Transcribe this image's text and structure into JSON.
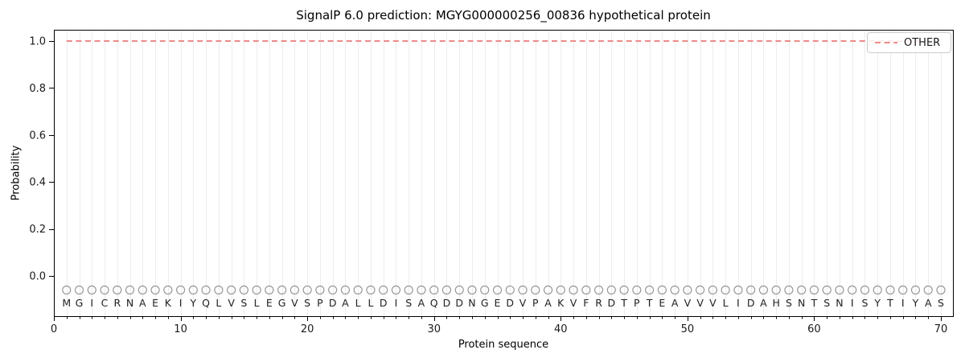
{
  "chart_data": {
    "type": "line",
    "title": "SignalP 6.0 prediction: MGYG000000256_00836 hypothetical protein",
    "xlabel": "Protein sequence",
    "ylabel": "Probability",
    "x_ticks": [
      0,
      10,
      20,
      30,
      40,
      50,
      60,
      70
    ],
    "y_ticks": [
      "0.0",
      "0.2",
      "0.4",
      "0.6",
      "0.8",
      "1.0"
    ],
    "xlim": [
      0,
      71
    ],
    "ylim": [
      -0.17,
      1.05
    ],
    "grid": {
      "vertical_line_per_residue": true,
      "horizontal": false
    },
    "legend": {
      "position": "upper-right",
      "entries": [
        {
          "label": "OTHER",
          "color": "#ee8a8a",
          "linestyle": "dashed"
        }
      ]
    },
    "series": [
      {
        "name": "OTHER",
        "color": "#ee8a8a",
        "linestyle": "dashed",
        "x_range": [
          1,
          70
        ],
        "constant_probability": 1.0
      }
    ],
    "sequence": [
      "M",
      "G",
      "I",
      "C",
      "R",
      "N",
      "A",
      "E",
      "K",
      "I",
      "Y",
      "Q",
      "L",
      "V",
      "S",
      "L",
      "E",
      "G",
      "V",
      "S",
      "P",
      "D",
      "A",
      "L",
      "L",
      "D",
      "I",
      "S",
      "A",
      "Q",
      "D",
      "D",
      "N",
      "G",
      "E",
      "D",
      "V",
      "P",
      "A",
      "K",
      "V",
      "F",
      "R",
      "D",
      "T",
      "P",
      "T",
      "E",
      "A",
      "V",
      "V",
      "V",
      "L",
      "I",
      "D",
      "A",
      "H",
      "S",
      "N",
      "T",
      "S",
      "N",
      "I",
      "S",
      "Y",
      "T",
      "I",
      "Y",
      "A",
      "S"
    ],
    "residue_markers": {
      "shape": "circle",
      "stroke": "#999999",
      "fill": "none",
      "y_value": -0.06
    },
    "style": {
      "grid_color": "#ececec",
      "frame_color": "#000000",
      "background": "#ffffff"
    }
  }
}
